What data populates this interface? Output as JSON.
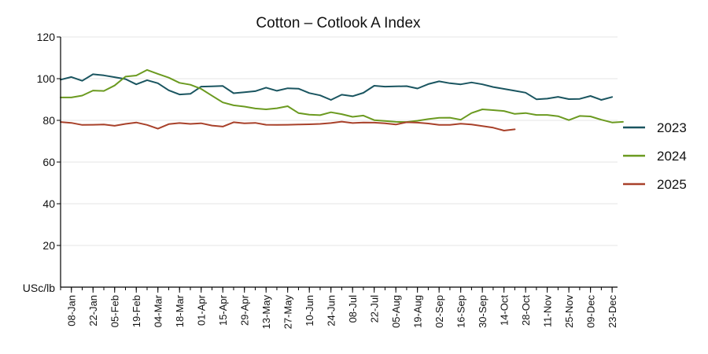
{
  "chart_data": {
    "type": "line",
    "title": "Cotton – Cotlook A Index",
    "ylabel": "USc/lb",
    "xlabel": "",
    "ylim": [
      0,
      120
    ],
    "yticks": [
      20,
      40,
      60,
      80,
      100,
      120
    ],
    "xlim": [
      1,
      52.5
    ],
    "grid": "horizontal",
    "legend_position": "right",
    "x_tick_weeks": [
      2,
      4,
      6,
      8,
      10,
      12,
      14,
      16,
      18,
      20,
      22,
      24,
      26,
      28,
      30,
      32,
      34,
      36,
      38,
      40,
      42,
      44,
      46,
      48,
      50,
      52
    ],
    "x_tick_labels": [
      "08-Jan",
      "22-Jan",
      "05-Feb",
      "19-Feb",
      "04-Mar",
      "18-Mar",
      "01-Apr",
      "15-Apr",
      "29-Apr",
      "13-May",
      "27-May",
      "10-Jun",
      "24-Jun",
      "08-Jul",
      "22-Jul",
      "05-Aug",
      "19-Aug",
      "02-Sep",
      "16-Sep",
      "30-Sep",
      "14-Oct",
      "28-Oct",
      "11-Nov",
      "25-Nov",
      "09-Dec",
      "23-Dec"
    ],
    "series": [
      {
        "name": "2023",
        "color": "#1a5560",
        "values": [
          99.5,
          100.8,
          99.0,
          102.1,
          101.6,
          100.7,
          99.8,
          97.3,
          99.3,
          97.8,
          94.4,
          92.4,
          92.7,
          96.2,
          96.3,
          96.5,
          93.0,
          93.5,
          94.0,
          95.7,
          94.2,
          95.4,
          95.2,
          93.1,
          92.0,
          89.8,
          92.3,
          91.6,
          93.2,
          96.6,
          96.2,
          96.3,
          96.4,
          95.3,
          97.4,
          98.7,
          97.8,
          97.3,
          98.2,
          97.3,
          96.0,
          95.1,
          94.2,
          93.3,
          90.1,
          90.4,
          91.3,
          90.2,
          90.3,
          91.7,
          89.8,
          91.2
        ]
      },
      {
        "name": "2024",
        "color": "#6b9a20",
        "values": [
          91.0,
          91.0,
          91.9,
          94.3,
          94.1,
          96.7,
          101.0,
          101.5,
          104.2,
          102.3,
          100.5,
          98.0,
          97.1,
          95.1,
          91.8,
          88.6,
          87.2,
          86.6,
          85.7,
          85.3,
          85.8,
          86.8,
          83.5,
          82.7,
          82.5,
          83.9,
          83.0,
          81.7,
          82.3,
          80.1,
          79.7,
          79.3,
          79.2,
          79.8,
          80.6,
          81.2,
          81.3,
          80.3,
          83.5,
          85.3,
          84.9,
          84.5,
          83.1,
          83.5,
          82.6,
          82.6,
          82.0,
          80.1,
          82.1,
          81.9,
          80.3,
          79.0,
          79.3
        ]
      },
      {
        "name": "2025",
        "color": "#a8412a",
        "values": [
          79.2,
          78.8,
          77.8,
          77.9,
          78.0,
          77.4,
          78.3,
          79.0,
          77.8,
          76.0,
          78.2,
          78.7,
          78.3,
          78.6,
          77.5,
          77.0,
          79.1,
          78.6,
          78.8,
          77.9,
          77.8,
          77.9,
          78.0,
          78.1,
          78.3,
          78.7,
          79.4,
          78.7,
          79.0,
          78.9,
          78.6,
          78.0,
          79.1,
          78.9,
          78.5,
          77.8,
          77.8,
          78.4,
          78.0,
          77.3,
          76.5,
          75.1,
          75.7
        ]
      }
    ]
  }
}
